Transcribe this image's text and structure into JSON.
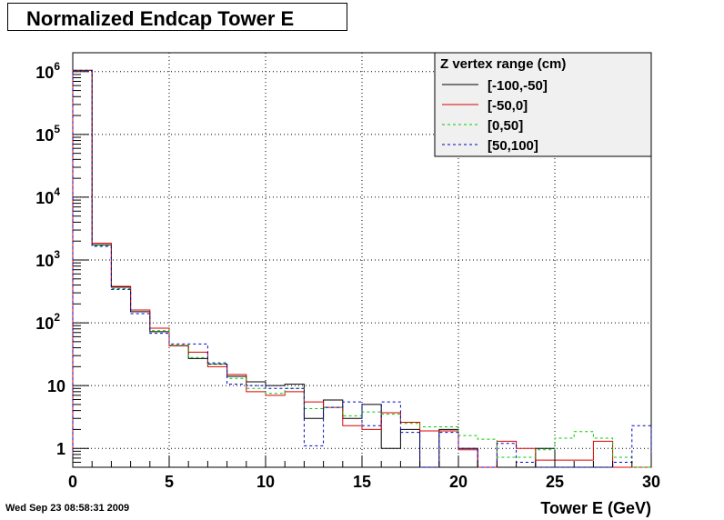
{
  "chart_data": {
    "type": "line",
    "title": "Normalized Endcap Tower E",
    "xlabel": "Tower E (GeV)",
    "ylabel": "",
    "xlim": [
      0,
      30
    ],
    "ylim": [
      0.5,
      2000000
    ],
    "log_y": true,
    "grid": true,
    "x_ticks": [
      "0",
      "5",
      "10",
      "15",
      "20",
      "25",
      "30"
    ],
    "y_ticks": [
      {
        "base": "1",
        "exp": ""
      },
      {
        "base": "10",
        "exp": ""
      },
      {
        "base": "10",
        "exp": "2"
      },
      {
        "base": "10",
        "exp": "3"
      },
      {
        "base": "10",
        "exp": "4"
      },
      {
        "base": "10",
        "exp": "5"
      },
      {
        "base": "10",
        "exp": "6"
      }
    ],
    "legend": {
      "title": "Z vertex range (cm)",
      "placement": "top-right"
    },
    "bin_edges": [
      0,
      1,
      2,
      3,
      4,
      5,
      6,
      7,
      8,
      9,
      10,
      11,
      12,
      13,
      14,
      15,
      16,
      17,
      18,
      19,
      20,
      21,
      22,
      23,
      24,
      25,
      26,
      27,
      28,
      29,
      30
    ],
    "series": [
      {
        "name": "[-100,-50]",
        "color": "#000000",
        "dash": "solid",
        "values": [
          1050000,
          1750,
          370,
          150,
          72,
          43,
          27,
          22,
          14,
          11.5,
          10,
          10.5,
          3,
          5.9,
          3,
          5,
          1,
          2,
          0,
          2,
          1,
          0,
          0,
          0,
          1,
          0,
          0,
          0,
          0,
          0
        ]
      },
      {
        "name": "[-50,0]",
        "color": "#dd0000",
        "dash": "solid",
        "values": [
          1050000,
          1850,
          380,
          160,
          82,
          43,
          34,
          20,
          15,
          8,
          7,
          8,
          5.5,
          4.5,
          2.3,
          2,
          3.7,
          2.6,
          1.9,
          1.9,
          0.95,
          0,
          1.3,
          1,
          0.65,
          0.65,
          0.65,
          1.3,
          0,
          0
        ]
      },
      {
        "name": "[0,50]",
        "color": "#00cc00",
        "dash": "dash",
        "values": [
          1050000,
          1700,
          350,
          140,
          75,
          44,
          28,
          22,
          13,
          9,
          7.5,
          9,
          4.3,
          4.5,
          3.3,
          3.8,
          3.5,
          2.5,
          2.2,
          2.2,
          1.6,
          1.4,
          0.72,
          0.72,
          0.95,
          1.45,
          1.85,
          1.45,
          0.72,
          0
        ]
      },
      {
        "name": "[50,100]",
        "color": "#0000cc",
        "dash": "dash",
        "values": [
          1050000,
          1650,
          340,
          140,
          68,
          46,
          46,
          23,
          10.5,
          10,
          9,
          9,
          1.1,
          4.5,
          5.5,
          2.3,
          5.5,
          1.8,
          0,
          1.8,
          1,
          0,
          1.2,
          0.6,
          0,
          0,
          0,
          0,
          0.6,
          2.3
        ]
      }
    ]
  },
  "timestamp": "Wed Sep 23 08:58:31 2009"
}
